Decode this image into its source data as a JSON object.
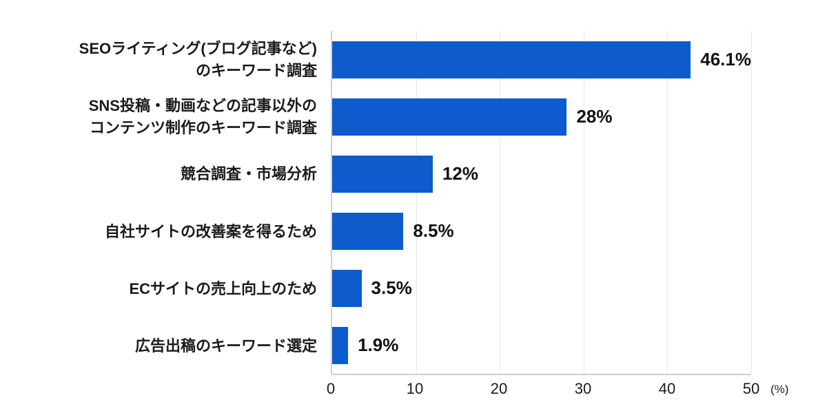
{
  "chart_data": {
    "type": "bar",
    "orientation": "horizontal",
    "title": "",
    "xlabel": "(%)",
    "ylabel": "",
    "xlim": [
      0,
      50
    ],
    "x_ticks": [
      "0",
      "10",
      "20",
      "30",
      "40",
      "50"
    ],
    "grid": true,
    "bar_color": "#0d5bcd",
    "categories": [
      "SEOライティング(ブログ記事など)のキーワード調査",
      "SNS投稿・動画などの記事以外のコンテンツ制作のキーワード調査",
      "競合調査・市場分析",
      "自社サイトの改善案を得るため",
      "ECサイトの売上向上のため",
      "広告出稿のキーワード選定"
    ],
    "values": [
      46.1,
      28,
      12,
      8.5,
      3.5,
      1.9
    ],
    "rows": [
      {
        "label": "SEOライティング(ブログ記事など)\nのキーワード調査",
        "value": 46.1,
        "value_label": "46.1%"
      },
      {
        "label": "SNS投稿・動画などの記事以外の\nコンテンツ制作のキーワード調査",
        "value": 28,
        "value_label": "28%"
      },
      {
        "label": "競合調査・市場分析",
        "value": 12,
        "value_label": "12%"
      },
      {
        "label": "自社サイトの改善案を得るため",
        "value": 8.5,
        "value_label": "8.5%"
      },
      {
        "label": "ECサイトの売上向上のため",
        "value": 3.5,
        "value_label": "3.5%"
      },
      {
        "label": "広告出稿のキーワード選定",
        "value": 1.9,
        "value_label": "1.9%"
      }
    ],
    "unit_label": "(%)"
  }
}
